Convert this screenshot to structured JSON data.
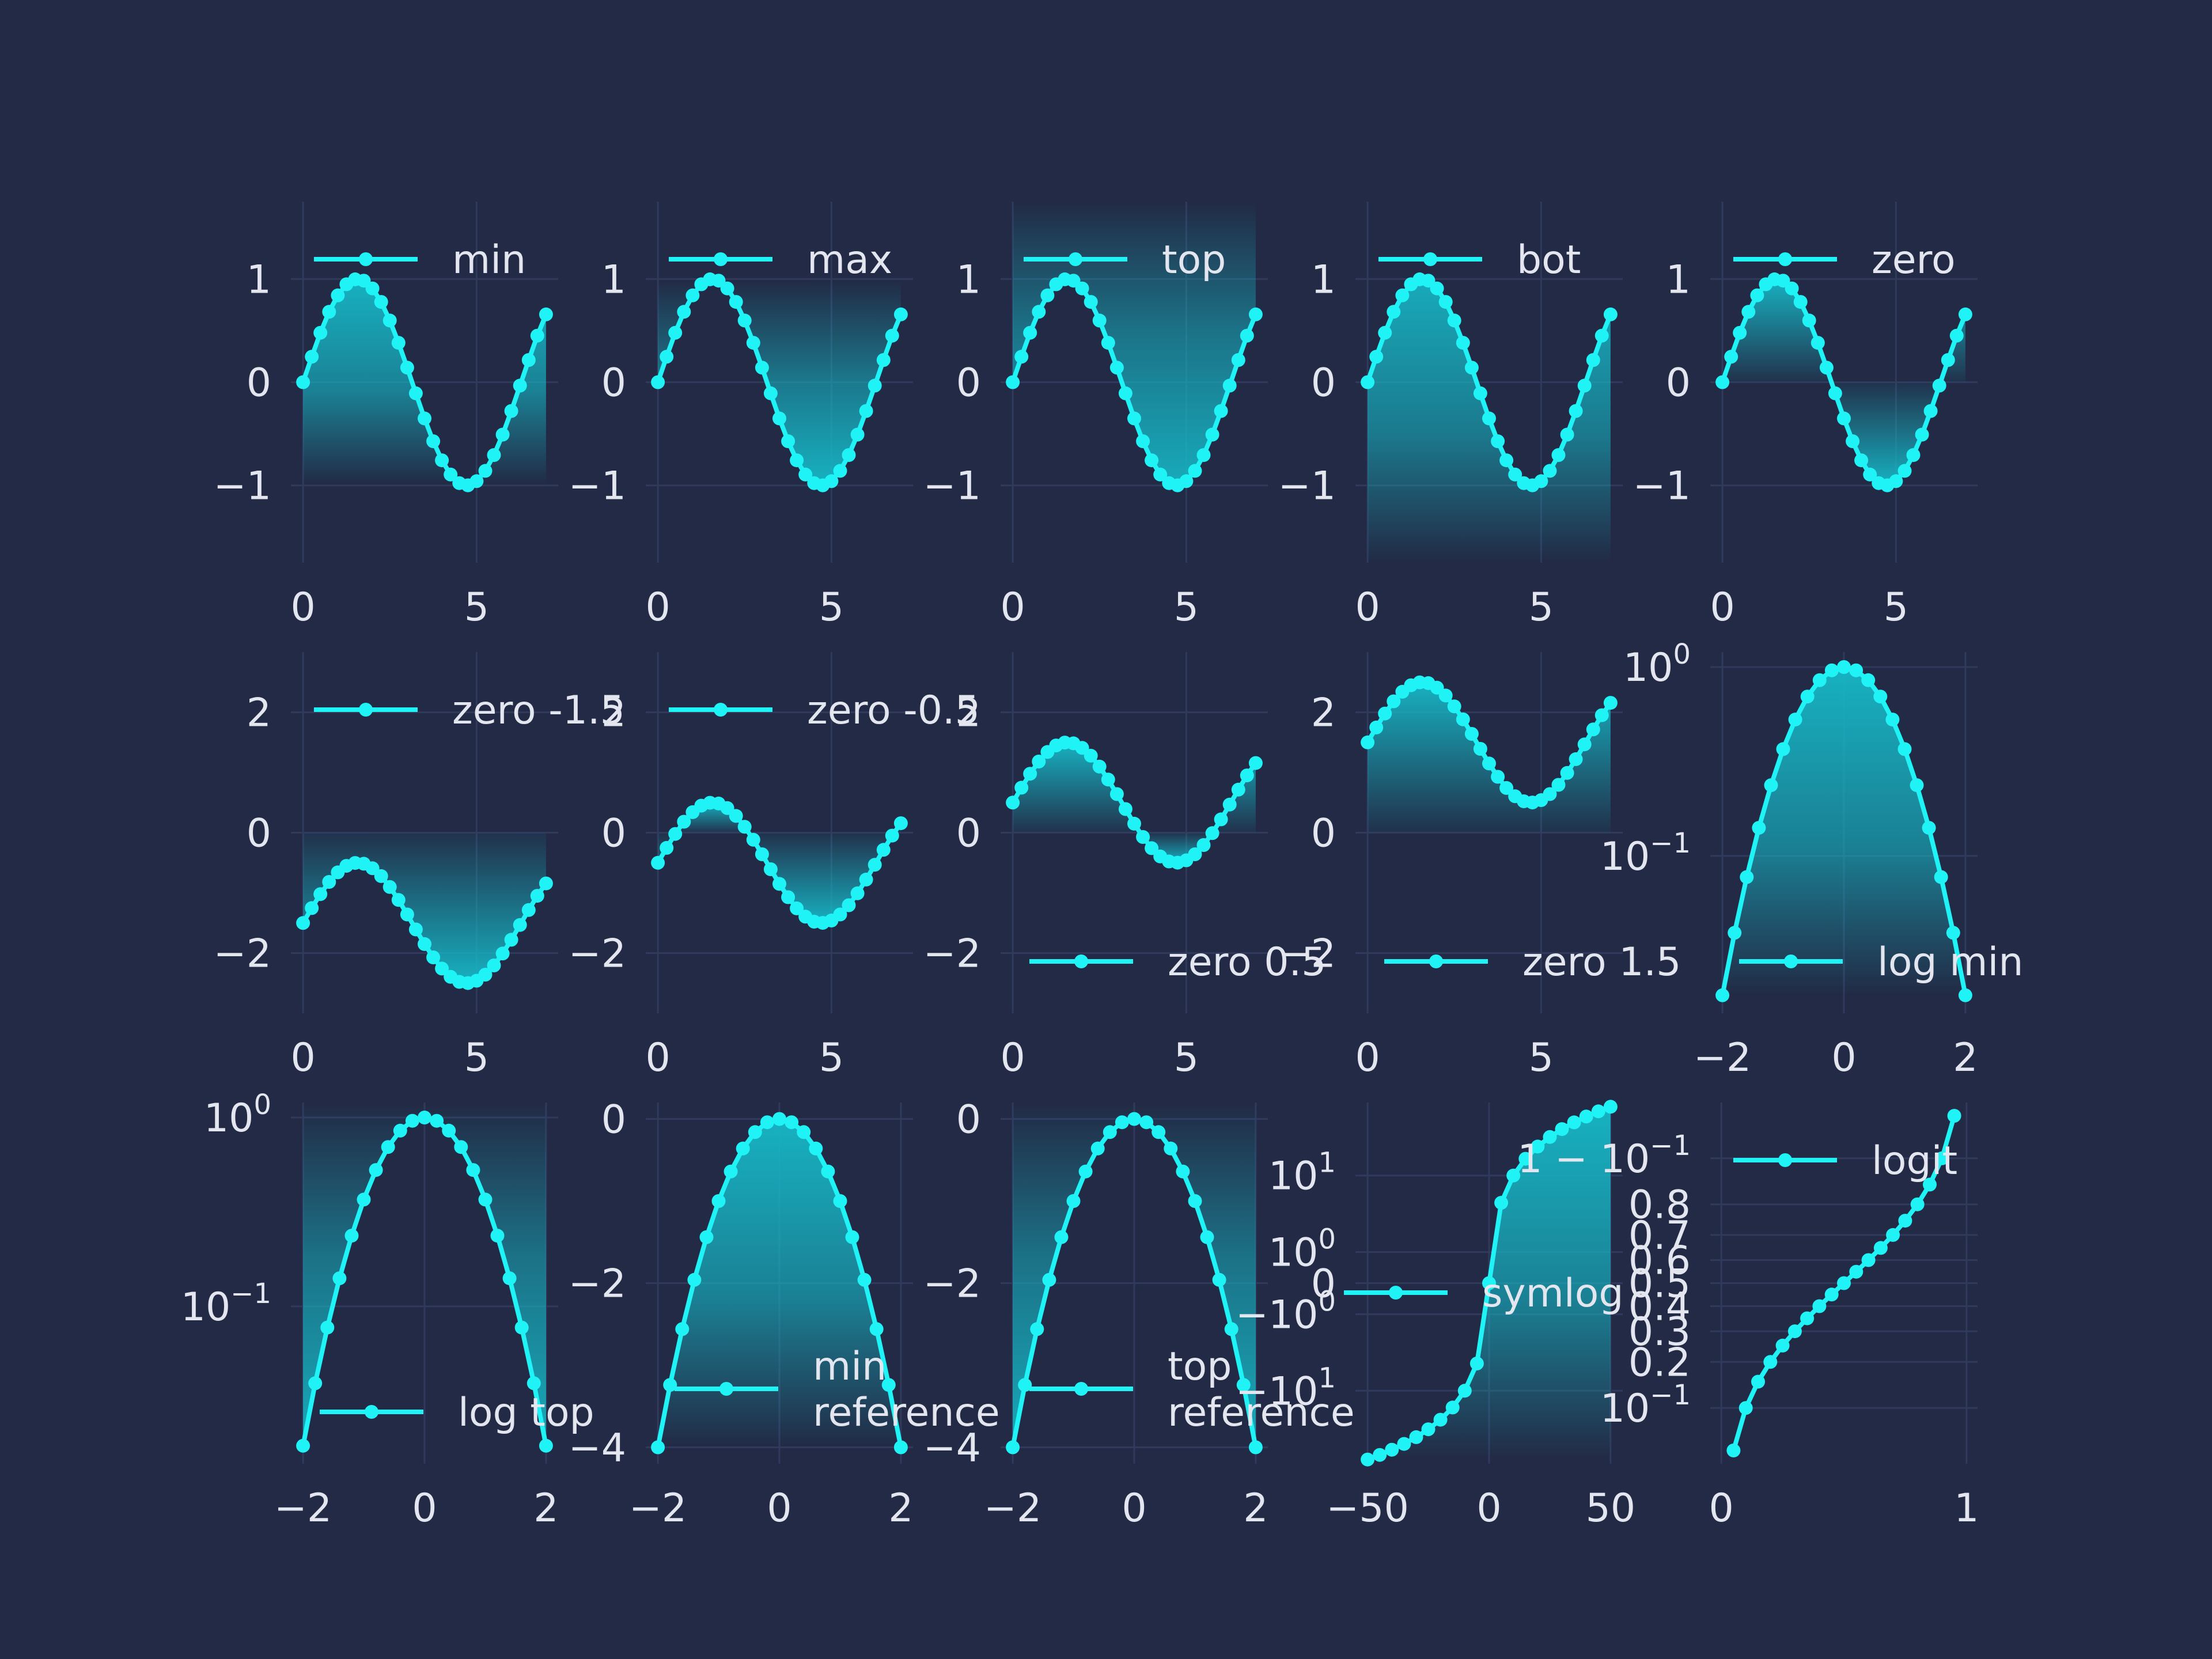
{
  "style": {
    "background": "#222a45",
    "grid_color": "#2f3a5c",
    "line_color": "#1ff3f6",
    "fill_color": "#16b9c8",
    "text_color": "#e3e6ee"
  },
  "chart_data": [
    {
      "type": "line",
      "fill_mode": "min",
      "legend": "min",
      "legend_pos": "top",
      "x": [
        0,
        0.25,
        0.5,
        0.75,
        1,
        1.25,
        1.5,
        1.75,
        2,
        2.25,
        2.5,
        2.75,
        3,
        3.25,
        3.5,
        3.75,
        4,
        4.25,
        4.5,
        4.75,
        5,
        5.25,
        5.5,
        5.75,
        6,
        6.25,
        6.5,
        6.75,
        7
      ],
      "y": [
        0,
        0.247,
        0.479,
        0.682,
        0.841,
        0.949,
        0.997,
        0.984,
        0.909,
        0.778,
        0.598,
        0.382,
        0.141,
        -0.108,
        -0.351,
        -0.572,
        -0.757,
        -0.895,
        -0.978,
        -0.999,
        -0.959,
        -0.859,
        -0.706,
        -0.508,
        -0.279,
        -0.033,
        0.215,
        0.451,
        0.657
      ],
      "xticks": [
        0,
        5
      ],
      "xticklabels": [
        "0",
        "5"
      ],
      "yticks": [
        -1,
        0,
        1
      ],
      "yticklabels": [
        "−1",
        "0",
        "1"
      ],
      "xlim": [
        -0.35,
        7.35
      ],
      "ylim": [
        -1.75,
        1.75
      ]
    },
    {
      "type": "line",
      "fill_mode": "max",
      "legend": "max",
      "legend_pos": "top",
      "x": [
        0,
        0.25,
        0.5,
        0.75,
        1,
        1.25,
        1.5,
        1.75,
        2,
        2.25,
        2.5,
        2.75,
        3,
        3.25,
        3.5,
        3.75,
        4,
        4.25,
        4.5,
        4.75,
        5,
        5.25,
        5.5,
        5.75,
        6,
        6.25,
        6.5,
        6.75,
        7
      ],
      "y": [
        0,
        0.247,
        0.479,
        0.682,
        0.841,
        0.949,
        0.997,
        0.984,
        0.909,
        0.778,
        0.598,
        0.382,
        0.141,
        -0.108,
        -0.351,
        -0.572,
        -0.757,
        -0.895,
        -0.978,
        -0.999,
        -0.959,
        -0.859,
        -0.706,
        -0.508,
        -0.279,
        -0.033,
        0.215,
        0.451,
        0.657
      ],
      "xticks": [
        0,
        5
      ],
      "xticklabels": [
        "0",
        "5"
      ],
      "yticks": [
        -1,
        0,
        1
      ],
      "yticklabels": [
        "−1",
        "0",
        "1"
      ],
      "xlim": [
        -0.35,
        7.35
      ],
      "ylim": [
        -1.75,
        1.75
      ]
    },
    {
      "type": "line",
      "fill_mode": "top",
      "legend": "top",
      "legend_pos": "top",
      "x": [
        0,
        0.25,
        0.5,
        0.75,
        1,
        1.25,
        1.5,
        1.75,
        2,
        2.25,
        2.5,
        2.75,
        3,
        3.25,
        3.5,
        3.75,
        4,
        4.25,
        4.5,
        4.75,
        5,
        5.25,
        5.5,
        5.75,
        6,
        6.25,
        6.5,
        6.75,
        7
      ],
      "y": [
        0,
        0.247,
        0.479,
        0.682,
        0.841,
        0.949,
        0.997,
        0.984,
        0.909,
        0.778,
        0.598,
        0.382,
        0.141,
        -0.108,
        -0.351,
        -0.572,
        -0.757,
        -0.895,
        -0.978,
        -0.999,
        -0.959,
        -0.859,
        -0.706,
        -0.508,
        -0.279,
        -0.033,
        0.215,
        0.451,
        0.657
      ],
      "xticks": [
        0,
        5
      ],
      "xticklabels": [
        "0",
        "5"
      ],
      "yticks": [
        -1,
        0,
        1
      ],
      "yticklabels": [
        "−1",
        "0",
        "1"
      ],
      "xlim": [
        -0.35,
        7.35
      ],
      "ylim": [
        -1.75,
        1.75
      ]
    },
    {
      "type": "line",
      "fill_mode": "bot",
      "legend": "bot",
      "legend_pos": "top",
      "x": [
        0,
        0.25,
        0.5,
        0.75,
        1,
        1.25,
        1.5,
        1.75,
        2,
        2.25,
        2.5,
        2.75,
        3,
        3.25,
        3.5,
        3.75,
        4,
        4.25,
        4.5,
        4.75,
        5,
        5.25,
        5.5,
        5.75,
        6,
        6.25,
        6.5,
        6.75,
        7
      ],
      "y": [
        0,
        0.247,
        0.479,
        0.682,
        0.841,
        0.949,
        0.997,
        0.984,
        0.909,
        0.778,
        0.598,
        0.382,
        0.141,
        -0.108,
        -0.351,
        -0.572,
        -0.757,
        -0.895,
        -0.978,
        -0.999,
        -0.959,
        -0.859,
        -0.706,
        -0.508,
        -0.279,
        -0.033,
        0.215,
        0.451,
        0.657
      ],
      "xticks": [
        0,
        5
      ],
      "xticklabels": [
        "0",
        "5"
      ],
      "yticks": [
        -1,
        0,
        1
      ],
      "yticklabels": [
        "−1",
        "0",
        "1"
      ],
      "xlim": [
        -0.35,
        7.35
      ],
      "ylim": [
        -1.75,
        1.75
      ]
    },
    {
      "type": "line",
      "fill_mode": "zero",
      "fill_ref": 0,
      "legend": "zero",
      "legend_pos": "top",
      "x": [
        0,
        0.25,
        0.5,
        0.75,
        1,
        1.25,
        1.5,
        1.75,
        2,
        2.25,
        2.5,
        2.75,
        3,
        3.25,
        3.5,
        3.75,
        4,
        4.25,
        4.5,
        4.75,
        5,
        5.25,
        5.5,
        5.75,
        6,
        6.25,
        6.5,
        6.75,
        7
      ],
      "y": [
        0,
        0.247,
        0.479,
        0.682,
        0.841,
        0.949,
        0.997,
        0.984,
        0.909,
        0.778,
        0.598,
        0.382,
        0.141,
        -0.108,
        -0.351,
        -0.572,
        -0.757,
        -0.895,
        -0.978,
        -0.999,
        -0.959,
        -0.859,
        -0.706,
        -0.508,
        -0.279,
        -0.033,
        0.215,
        0.451,
        0.657
      ],
      "xticks": [
        0,
        5
      ],
      "xticklabels": [
        "0",
        "5"
      ],
      "yticks": [
        -1,
        0,
        1
      ],
      "yticklabels": [
        "−1",
        "0",
        "1"
      ],
      "xlim": [
        -0.35,
        7.35
      ],
      "ylim": [
        -1.75,
        1.75
      ]
    },
    {
      "type": "line",
      "fill_mode": "zero",
      "fill_ref": 0,
      "legend": "zero -1.5",
      "legend_pos": "top",
      "x": [
        0,
        0.25,
        0.5,
        0.75,
        1,
        1.25,
        1.5,
        1.75,
        2,
        2.25,
        2.5,
        2.75,
        3,
        3.25,
        3.5,
        3.75,
        4,
        4.25,
        4.5,
        4.75,
        5,
        5.25,
        5.5,
        5.75,
        6,
        6.25,
        6.5,
        6.75,
        7
      ],
      "y": [
        -1.5,
        -1.253,
        -1.021,
        -0.818,
        -0.659,
        -0.551,
        -0.503,
        -0.516,
        -0.591,
        -0.722,
        -0.902,
        -1.118,
        -1.359,
        -1.608,
        -1.851,
        -2.072,
        -2.257,
        -2.395,
        -2.478,
        -2.499,
        -2.459,
        -2.359,
        -2.206,
        -2.008,
        -1.779,
        -1.533,
        -1.285,
        -1.049,
        -0.843
      ],
      "xticks": [
        0,
        5
      ],
      "xticklabels": [
        "0",
        "5"
      ],
      "yticks": [
        -2,
        0,
        2
      ],
      "yticklabels": [
        "−2",
        "0",
        "2"
      ],
      "xlim": [
        -0.35,
        7.35
      ],
      "ylim": [
        -3,
        3
      ]
    },
    {
      "type": "line",
      "fill_mode": "zero",
      "fill_ref": 0,
      "legend": "zero -0.5",
      "legend_pos": "top",
      "x": [
        0,
        0.25,
        0.5,
        0.75,
        1,
        1.25,
        1.5,
        1.75,
        2,
        2.25,
        2.5,
        2.75,
        3,
        3.25,
        3.5,
        3.75,
        4,
        4.25,
        4.5,
        4.75,
        5,
        5.25,
        5.5,
        5.75,
        6,
        6.25,
        6.5,
        6.75,
        7
      ],
      "y": [
        -0.5,
        -0.253,
        -0.021,
        0.182,
        0.341,
        0.449,
        0.497,
        0.484,
        0.409,
        0.278,
        0.098,
        -0.118,
        -0.359,
        -0.608,
        -0.851,
        -1.072,
        -1.257,
        -1.395,
        -1.478,
        -1.499,
        -1.459,
        -1.359,
        -1.206,
        -1.008,
        -0.779,
        -0.533,
        -0.285,
        -0.049,
        0.157
      ],
      "xticks": [
        0,
        5
      ],
      "xticklabels": [
        "0",
        "5"
      ],
      "yticks": [
        -2,
        0,
        2
      ],
      "yticklabels": [
        "−2",
        "0",
        "2"
      ],
      "xlim": [
        -0.35,
        7.35
      ],
      "ylim": [
        -3,
        3
      ]
    },
    {
      "type": "line",
      "fill_mode": "zero",
      "fill_ref": 0,
      "legend": "zero 0.5",
      "legend_pos": "bottom-right",
      "x": [
        0,
        0.25,
        0.5,
        0.75,
        1,
        1.25,
        1.5,
        1.75,
        2,
        2.25,
        2.5,
        2.75,
        3,
        3.25,
        3.5,
        3.75,
        4,
        4.25,
        4.5,
        4.75,
        5,
        5.25,
        5.5,
        5.75,
        6,
        6.25,
        6.5,
        6.75,
        7
      ],
      "y": [
        0.5,
        0.747,
        0.979,
        1.182,
        1.341,
        1.449,
        1.497,
        1.484,
        1.409,
        1.278,
        1.098,
        0.882,
        0.641,
        0.392,
        0.149,
        -0.072,
        -0.257,
        -0.395,
        -0.478,
        -0.499,
        -0.459,
        -0.359,
        -0.206,
        -0.008,
        0.221,
        0.467,
        0.715,
        0.951,
        1.157
      ],
      "xticks": [
        0,
        5
      ],
      "xticklabels": [
        "0",
        "5"
      ],
      "yticks": [
        -2,
        0,
        2
      ],
      "yticklabels": [
        "−2",
        "0",
        "2"
      ],
      "xlim": [
        -0.35,
        7.35
      ],
      "ylim": [
        -3,
        3
      ]
    },
    {
      "type": "line",
      "fill_mode": "zero",
      "fill_ref": 0,
      "legend": "zero 1.5",
      "legend_pos": "bottom-right",
      "x": [
        0,
        0.25,
        0.5,
        0.75,
        1,
        1.25,
        1.5,
        1.75,
        2,
        2.25,
        2.5,
        2.75,
        3,
        3.25,
        3.5,
        3.75,
        4,
        4.25,
        4.5,
        4.75,
        5,
        5.25,
        5.5,
        5.75,
        6,
        6.25,
        6.5,
        6.75,
        7
      ],
      "y": [
        1.5,
        1.747,
        1.979,
        2.182,
        2.341,
        2.449,
        2.497,
        2.484,
        2.409,
        2.278,
        2.098,
        1.882,
        1.641,
        1.392,
        1.149,
        0.928,
        0.743,
        0.605,
        0.522,
        0.501,
        0.541,
        0.641,
        0.794,
        0.992,
        1.221,
        1.467,
        1.715,
        1.951,
        2.157
      ],
      "xticks": [
        0,
        5
      ],
      "xticklabels": [
        "0",
        "5"
      ],
      "yticks": [
        -2,
        0,
        2
      ],
      "yticklabels": [
        "−2",
        "0",
        "2"
      ],
      "xlim": [
        -0.35,
        7.35
      ],
      "ylim": [
        -3,
        3
      ]
    },
    {
      "type": "line",
      "fill_mode": "min",
      "yscale": "log",
      "legend": "log min",
      "legend_pos": "bottom-right",
      "x": [
        -2,
        -1.8,
        -1.6,
        -1.4,
        -1.2,
        -1,
        -0.8,
        -0.6,
        -0.4,
        -0.2,
        0,
        0.2,
        0.4,
        0.6,
        0.8,
        1,
        1.2,
        1.4,
        1.6,
        1.8,
        2
      ],
      "y": [
        0.0183,
        0.0392,
        0.0773,
        0.1409,
        0.2369,
        0.3679,
        0.5273,
        0.6977,
        0.8521,
        0.9608,
        1,
        0.9608,
        0.8521,
        0.6977,
        0.5273,
        0.3679,
        0.2369,
        0.1409,
        0.0773,
        0.0392,
        0.0183
      ],
      "xticks": [
        -2,
        0,
        2
      ],
      "xticklabels": [
        "−2",
        "0",
        "2"
      ],
      "yticks": [
        0.1,
        1
      ],
      "yticklabels": [
        [
          "10",
          "−1"
        ],
        [
          "10",
          "0"
        ]
      ],
      "xlim": [
        -2.2,
        2.2
      ],
      "ylim": [
        0.0147,
        1.2
      ]
    },
    {
      "type": "line",
      "fill_mode": "top",
      "yscale": "log",
      "legend": "log top",
      "legend_pos": "bottom-right",
      "x": [
        -2,
        -1.8,
        -1.6,
        -1.4,
        -1.2,
        -1,
        -0.8,
        -0.6,
        -0.4,
        -0.2,
        0,
        0.2,
        0.4,
        0.6,
        0.8,
        1,
        1.2,
        1.4,
        1.6,
        1.8,
        2
      ],
      "y": [
        0.0183,
        0.0392,
        0.0773,
        0.1409,
        0.2369,
        0.3679,
        0.5273,
        0.6977,
        0.8521,
        0.9608,
        1,
        0.9608,
        0.8521,
        0.6977,
        0.5273,
        0.3679,
        0.2369,
        0.1409,
        0.0773,
        0.0392,
        0.0183
      ],
      "xticks": [
        -2,
        0,
        2
      ],
      "xticklabels": [
        "−2",
        "0",
        "2"
      ],
      "yticks": [
        0.1,
        1
      ],
      "yticklabels": [
        [
          "10",
          "−1"
        ],
        [
          "10",
          "0"
        ]
      ],
      "xlim": [
        -2.2,
        2.2
      ],
      "ylim": [
        0.0147,
        1.2
      ]
    },
    {
      "type": "line",
      "fill_mode": "min",
      "legend": "min reference",
      "legend_pos": "bottom-right",
      "x": [
        -2,
        -1.8,
        -1.6,
        -1.4,
        -1.2,
        -1,
        -0.8,
        -0.6,
        -0.4,
        -0.2,
        0,
        0.2,
        0.4,
        0.6,
        0.8,
        1,
        1.2,
        1.4,
        1.6,
        1.8,
        2
      ],
      "y": [
        -4,
        -3.24,
        -2.56,
        -1.96,
        -1.44,
        -1,
        -0.64,
        -0.36,
        -0.16,
        -0.04,
        0,
        -0.04,
        -0.16,
        -0.36,
        -0.64,
        -1,
        -1.44,
        -1.96,
        -2.56,
        -3.24,
        -4
      ],
      "xticks": [
        -2,
        0,
        2
      ],
      "xticklabels": [
        "−2",
        "0",
        "2"
      ],
      "yticks": [
        -4,
        -2,
        0
      ],
      "yticklabels": [
        "−4",
        "−2",
        "0"
      ],
      "xlim": [
        -2.2,
        2.2
      ],
      "ylim": [
        -4.2,
        0.2
      ]
    },
    {
      "type": "line",
      "fill_mode": "top",
      "legend": "top reference",
      "legend_pos": "bottom-right",
      "x": [
        -2,
        -1.8,
        -1.6,
        -1.4,
        -1.2,
        -1,
        -0.8,
        -0.6,
        -0.4,
        -0.2,
        0,
        0.2,
        0.4,
        0.6,
        0.8,
        1,
        1.2,
        1.4,
        1.6,
        1.8,
        2
      ],
      "y": [
        -4,
        -3.24,
        -2.56,
        -1.96,
        -1.44,
        -1,
        -0.64,
        -0.36,
        -0.16,
        -0.04,
        0,
        -0.04,
        -0.16,
        -0.36,
        -0.64,
        -1,
        -1.44,
        -1.96,
        -2.56,
        -3.24,
        -4
      ],
      "xticks": [
        -2,
        0,
        2
      ],
      "xticklabels": [
        "−2",
        "0",
        "2"
      ],
      "yticks": [
        -4,
        -2,
        0
      ],
      "yticklabels": [
        "−4",
        "−2",
        "0"
      ],
      "xlim": [
        -2.2,
        2.2
      ],
      "ylim": [
        -4.2,
        0.2
      ]
    },
    {
      "type": "line",
      "fill_mode": "min",
      "yscale": "symlog",
      "legend": "symlog",
      "legend_pos": "center",
      "x": [
        -50,
        -45,
        -40,
        -35,
        -30,
        -25,
        -20,
        -15,
        -10,
        -5,
        0,
        5,
        10,
        15,
        20,
        25,
        30,
        35,
        40,
        45,
        50
      ],
      "y": [
        -50,
        -45,
        -40,
        -35,
        -30,
        -25,
        -20,
        -15,
        -10,
        -5,
        0,
        5,
        10,
        15,
        20,
        25,
        30,
        35,
        40,
        45,
        50
      ],
      "xticks": [
        -50,
        0,
        50
      ],
      "xticklabels": [
        "−50",
        "0",
        "50"
      ],
      "yticks": [
        -10,
        -1,
        0,
        1,
        10
      ],
      "yticklabels": [
        [
          "−10",
          "1"
        ],
        [
          "−10",
          "0"
        ],
        [
          "0",
          ""
        ],
        [
          "10",
          "0"
        ],
        [
          "10",
          "1"
        ]
      ],
      "xlim": [
        -55,
        55
      ],
      "ylim": [
        -55,
        55
      ]
    },
    {
      "type": "line",
      "fill_mode": "none",
      "yscale": "logit",
      "legend": "logit",
      "legend_pos": "top",
      "x": [
        0.05,
        0.1,
        0.15,
        0.2,
        0.25,
        0.3,
        0.35,
        0.4,
        0.45,
        0.5,
        0.55,
        0.6,
        0.65,
        0.7,
        0.75,
        0.8,
        0.85,
        0.9,
        0.95
      ],
      "y": [
        0.05,
        0.1,
        0.15,
        0.2,
        0.25,
        0.3,
        0.35,
        0.4,
        0.45,
        0.5,
        0.55,
        0.6,
        0.65,
        0.7,
        0.75,
        0.8,
        0.85,
        0.9,
        0.95
      ],
      "xticks": [
        0,
        1
      ],
      "xticklabels": [
        "0",
        "1"
      ],
      "yticks": [
        0.1,
        0.2,
        0.3,
        0.4,
        0.5,
        0.6,
        0.7,
        0.8,
        0.9
      ],
      "yticklabels": [
        [
          "10",
          "−1"
        ],
        [
          "0.2",
          ""
        ],
        [
          "0.3",
          ""
        ],
        [
          "0.4",
          ""
        ],
        [
          "0.5",
          ""
        ],
        [
          "0.6",
          ""
        ],
        [
          "0.7",
          ""
        ],
        [
          "0.8",
          ""
        ],
        [
          "1 − 10",
          "−1"
        ]
      ],
      "xlim": [
        -0.045,
        1.045
      ],
      "ylim": [
        0.04,
        0.96
      ]
    }
  ]
}
